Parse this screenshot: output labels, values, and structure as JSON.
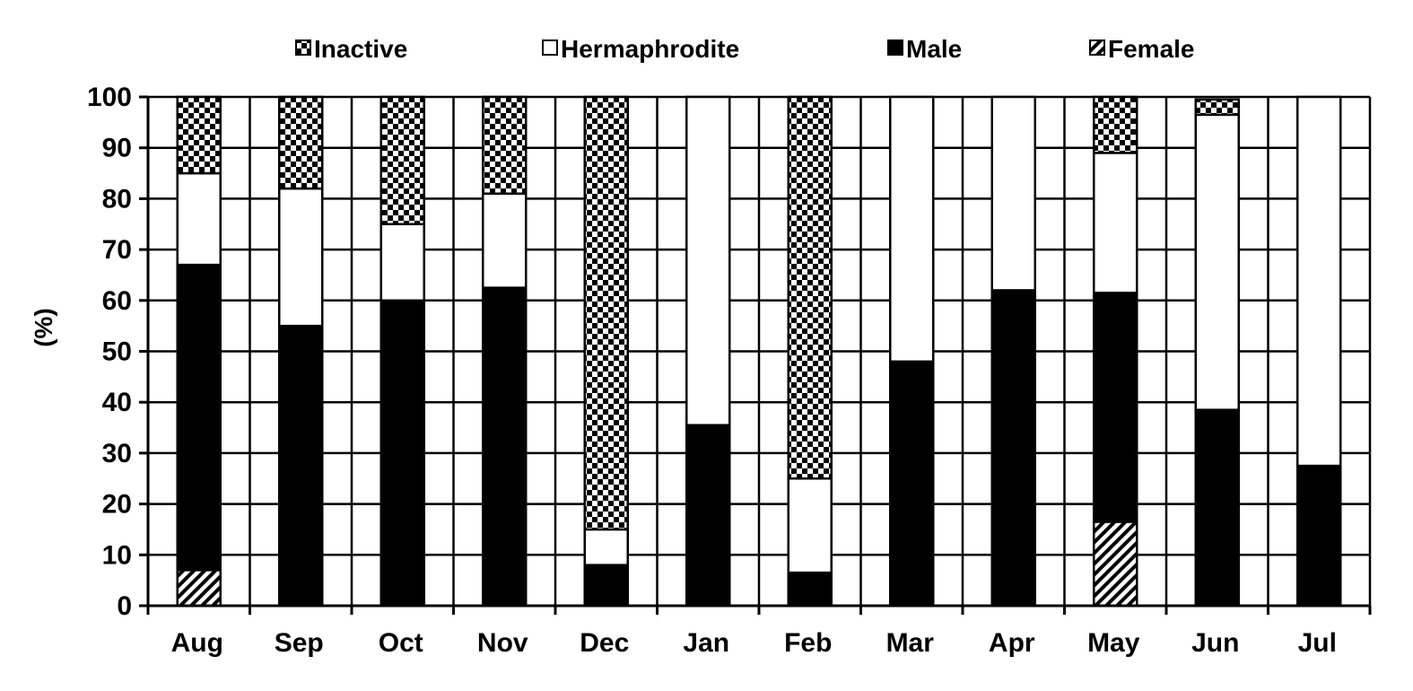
{
  "chart_data": {
    "type": "bar",
    "stacked": true,
    "title": "",
    "xlabel": "",
    "ylabel": "(%)",
    "ylim": [
      0,
      100
    ],
    "yticks": [
      0,
      10,
      20,
      30,
      40,
      50,
      60,
      70,
      80,
      90,
      100
    ],
    "grid": true,
    "legend_position": "top",
    "categories": [
      "Aug",
      "Sep",
      "Oct",
      "Nov",
      "Dec",
      "Jan",
      "Feb",
      "Mar",
      "Apr",
      "May",
      "Jun",
      "Jul"
    ],
    "series": [
      {
        "name": "Female",
        "pattern": "hatch",
        "color": "#000000",
        "values": [
          7,
          0,
          0,
          0,
          0,
          0,
          0,
          0,
          0,
          16.5,
          0,
          0
        ]
      },
      {
        "name": "Male",
        "pattern": "solid",
        "color": "#000000",
        "values": [
          60,
          55,
          60,
          62.5,
          8,
          35.5,
          6.5,
          48,
          62,
          45,
          38.5,
          27.5
        ]
      },
      {
        "name": "Hermaphrodite",
        "pattern": "none",
        "color": "#ffffff",
        "values": [
          18,
          27,
          15,
          18.5,
          7,
          64.5,
          18.5,
          52,
          38,
          27.5,
          58,
          72.5
        ]
      },
      {
        "name": "Inactive",
        "pattern": "checker",
        "color": "#000000",
        "values": [
          15,
          18,
          25,
          19,
          85,
          0,
          75,
          0,
          0,
          11,
          3,
          0
        ]
      }
    ],
    "legend_order": [
      "Inactive",
      "Hermaphrodite",
      "Male",
      "Female"
    ]
  }
}
